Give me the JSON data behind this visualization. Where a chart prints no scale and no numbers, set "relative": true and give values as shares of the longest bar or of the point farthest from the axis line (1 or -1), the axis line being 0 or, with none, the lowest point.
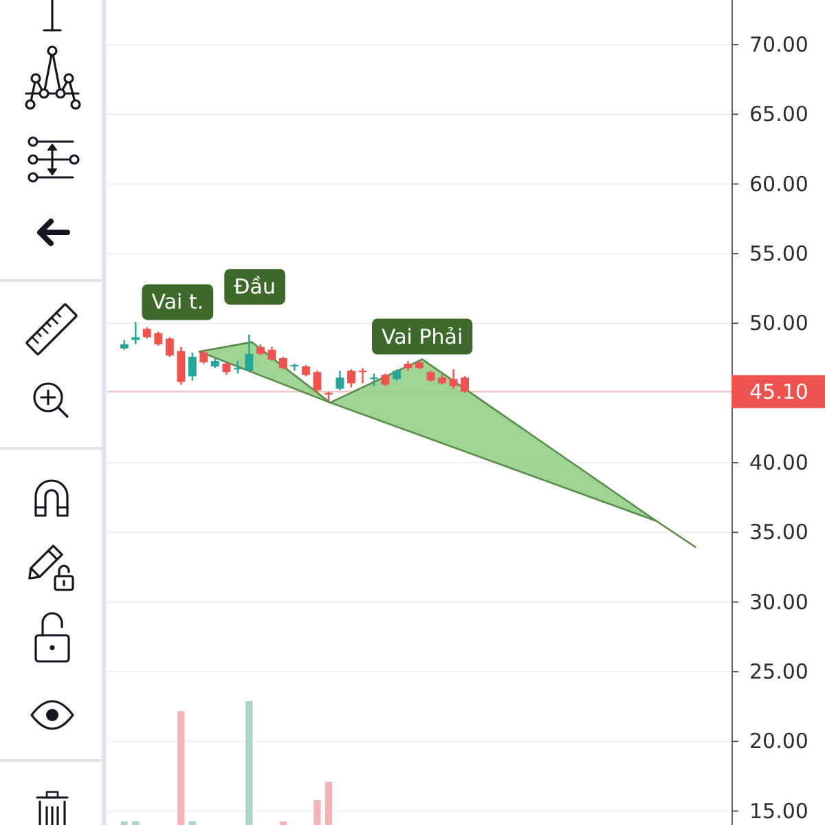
{
  "chart_data": [
    {
      "type": "candlestick",
      "categories": [
        null,
        null,
        null,
        null,
        null,
        null,
        null,
        null,
        null,
        null,
        null,
        null,
        null,
        null,
        null,
        null,
        null,
        null,
        null,
        null,
        null,
        null,
        null,
        null,
        null,
        null,
        null,
        null,
        null,
        null,
        null,
        null,
        null,
        null,
        null,
        null,
        null,
        null,
        null,
        null,
        null,
        null,
        null,
        null,
        null,
        null,
        null,
        null,
        null,
        null,
        null,
        null,
        null,
        null,
        null
      ],
      "ohlc": [
        null,
        [
          48.2,
          48.8,
          48.1,
          48.5
        ],
        [
          48.8,
          50.1,
          48.5,
          49.0
        ],
        [
          49.6,
          49.7,
          48.9,
          49.0
        ],
        [
          49.3,
          49.4,
          48.4,
          48.5
        ],
        [
          48.9,
          49.0,
          47.6,
          47.7
        ],
        [
          48.0,
          48.3,
          45.6,
          45.8
        ],
        [
          46.2,
          47.9,
          45.9,
          47.6
        ],
        [
          47.9,
          48.1,
          47.1,
          47.2
        ],
        [
          46.9,
          47.5,
          46.8,
          47.3
        ],
        [
          47.1,
          47.2,
          46.3,
          46.5
        ],
        [
          46.7,
          47.3,
          46.4,
          46.8
        ],
        [
          46.6,
          49.2,
          46.5,
          47.8
        ],
        [
          48.3,
          48.5,
          47.7,
          47.8
        ],
        [
          48.1,
          48.3,
          47.3,
          47.4
        ],
        [
          47.5,
          47.6,
          46.7,
          46.8
        ],
        [
          46.9,
          47.1,
          46.6,
          47.0
        ],
        [
          46.9,
          47.0,
          46.2,
          46.3
        ],
        [
          46.5,
          46.6,
          45.0,
          45.2
        ],
        [
          45.0,
          45.1,
          44.4,
          44.9
        ],
        [
          45.3,
          46.6,
          45.2,
          46.1
        ],
        [
          46.6,
          46.7,
          45.4,
          45.7
        ],
        [
          46.6,
          46.8,
          45.7,
          46.5
        ],
        [
          46.0,
          46.4,
          45.5,
          46.1
        ],
        [
          46.3,
          46.4,
          45.5,
          45.6
        ],
        [
          46.0,
          46.7,
          45.9,
          46.6
        ],
        [
          47.1,
          47.3,
          46.6,
          46.8
        ],
        [
          47.2,
          47.3,
          46.7,
          46.8
        ],
        [
          46.5,
          46.6,
          45.8,
          45.9
        ],
        [
          46.1,
          46.3,
          45.6,
          45.7
        ],
        [
          46.0,
          46.7,
          45.3,
          45.5
        ],
        [
          46.1,
          46.2,
          45.0,
          45.1
        ],
        null,
        null,
        null,
        null,
        null,
        null,
        null,
        null,
        null,
        null,
        null,
        null,
        null,
        null,
        null,
        null,
        null,
        null,
        null,
        null,
        null,
        null,
        null
      ],
      "colors": [
        null,
        "#26a69a",
        "#26a69a",
        "#ef5350",
        "#ef5350",
        "#ef5350",
        "#ef5350",
        "#26a69a",
        "#ef5350",
        "#26a69a",
        "#ef5350",
        "#26a69a",
        "#26a69a",
        "#ef5350",
        "#ef5350",
        "#ef5350",
        "#26a69a",
        "#ef5350",
        "#ef5350",
        "#ef5350",
        "#26a69a",
        "#ef5350",
        "#ef5350",
        "#26a69a",
        "#ef5350",
        "#26a69a",
        "#ef5350",
        "#ef5350",
        "#ef5350",
        "#ef5350",
        "#ef5350",
        "#ef5350",
        null,
        null,
        null,
        null,
        null,
        null,
        null,
        null,
        null,
        null,
        null,
        null,
        null,
        null,
        null,
        null,
        null,
        null,
        null,
        null,
        null,
        null,
        null
      ],
      "ylim": [
        14,
        73.2
      ],
      "yticks": [
        {
          "value": 15,
          "label": "15.00"
        },
        {
          "value": 20,
          "label": "20.00"
        },
        {
          "value": 25,
          "label": "25.00"
        },
        {
          "value": 30,
          "label": "30.00"
        },
        {
          "value": 35,
          "label": "35.00"
        },
        {
          "value": 40,
          "label": "40.00"
        },
        {
          "value": 50,
          "label": "50.00"
        },
        {
          "value": 55,
          "label": "55.00"
        },
        {
          "value": 60,
          "label": "60.00"
        },
        {
          "value": 65,
          "label": "65.00"
        },
        {
          "value": 70,
          "label": "70.00"
        }
      ],
      "grid": "y",
      "ref_lines": [
        {
          "axis": "y",
          "value": 45.1,
          "label": "45.10",
          "color": "#ef5350"
        }
      ],
      "annotations": [
        "Vai t.",
        "Đầu",
        "Vai Phải"
      ]
    },
    {
      "type": "bar",
      "relative": true,
      "categories": [
        null,
        null,
        null,
        null,
        null,
        null,
        null,
        null,
        null,
        null,
        null,
        null,
        null,
        null,
        null,
        null,
        null,
        null,
        null,
        null,
        null,
        null,
        null,
        null,
        null,
        null,
        null,
        null,
        null,
        null,
        null,
        null,
        null,
        null,
        null,
        null,
        null,
        null,
        null,
        null,
        null,
        null,
        null,
        null,
        null,
        null,
        null,
        null,
        null,
        null,
        null,
        null,
        null,
        null,
        null
      ],
      "values": [
        null,
        0.03,
        0.03,
        null,
        null,
        null,
        0.92,
        0.03,
        null,
        null,
        null,
        null,
        1,
        null,
        null,
        0.03,
        null,
        null,
        0.2,
        0.35,
        null,
        null,
        null,
        null,
        null,
        null,
        null,
        null,
        null,
        null,
        null,
        null,
        null,
        null,
        null,
        null,
        null,
        null,
        null,
        null,
        null,
        null,
        null,
        null,
        null,
        null,
        null,
        null,
        null,
        null,
        null,
        null,
        null,
        null,
        null
      ],
      "colors": [
        null,
        "#a8d8c4",
        "#a8d8c4",
        null,
        null,
        null,
        "#f4b4b7",
        "#a8d8c4",
        null,
        null,
        null,
        null,
        "#a8d8c4",
        null,
        null,
        "#f4b4b7",
        null,
        null,
        "#f4b4b7",
        "#f4b4b7",
        null,
        null,
        null,
        null,
        null,
        null,
        null,
        null,
        null,
        null,
        null,
        null,
        null,
        null,
        null,
        null,
        null,
        null,
        null,
        null,
        null,
        null,
        null,
        null,
        null,
        null,
        null,
        null,
        null,
        null,
        null,
        null,
        null,
        null,
        null
      ]
    }
  ]
}
